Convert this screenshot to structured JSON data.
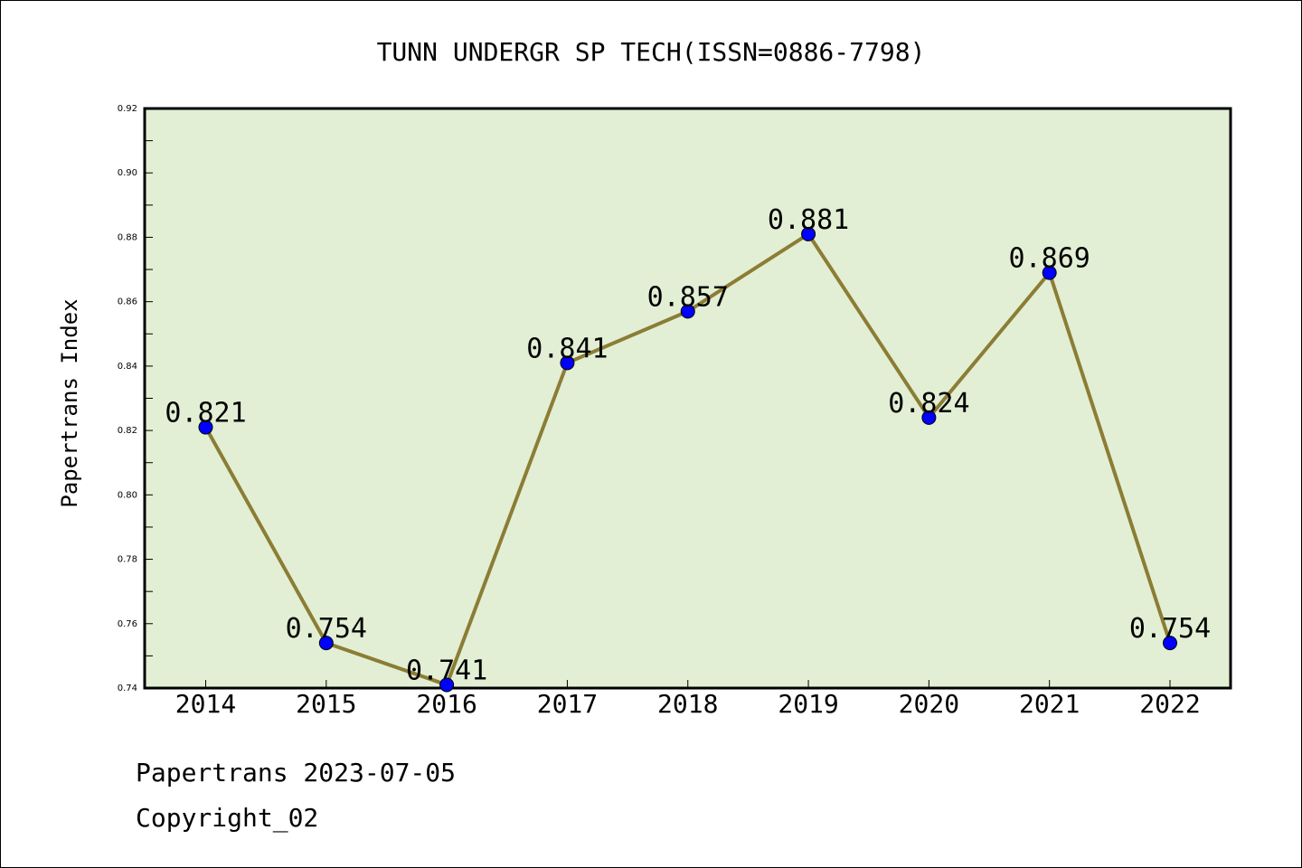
{
  "chart_data": {
    "type": "line",
    "title": "TUNN UNDERGR SP TECH(ISSN=0886-7798)",
    "xlabel": "",
    "ylabel": "Papertrans Index",
    "categories": [
      "2014",
      "2015",
      "2016",
      "2017",
      "2018",
      "2019",
      "2020",
      "2021",
      "2022"
    ],
    "series": [
      {
        "values": [
          0.821,
          0.754,
          0.741,
          0.841,
          0.857,
          0.881,
          0.824,
          0.869,
          0.754
        ]
      }
    ],
    "data_labels": [
      "0.821",
      "0.754",
      "0.741",
      "0.841",
      "0.857",
      "0.881",
      "0.824",
      "0.869",
      "0.754"
    ],
    "ylim": [
      0.74,
      0.92
    ],
    "yticks": [
      "0.74",
      "0.76",
      "0.78",
      "0.80",
      "0.82",
      "0.84",
      "0.86",
      "0.88",
      "0.90",
      "0.92"
    ],
    "grid": false,
    "legend": "none"
  },
  "footer": {
    "line1": "Papertrans 2023-07-05",
    "line2": "Copyright_02"
  },
  "colors": {
    "plot_background": "#e2efd5",
    "line": "#8b7d34",
    "marker": "#0000ff"
  }
}
